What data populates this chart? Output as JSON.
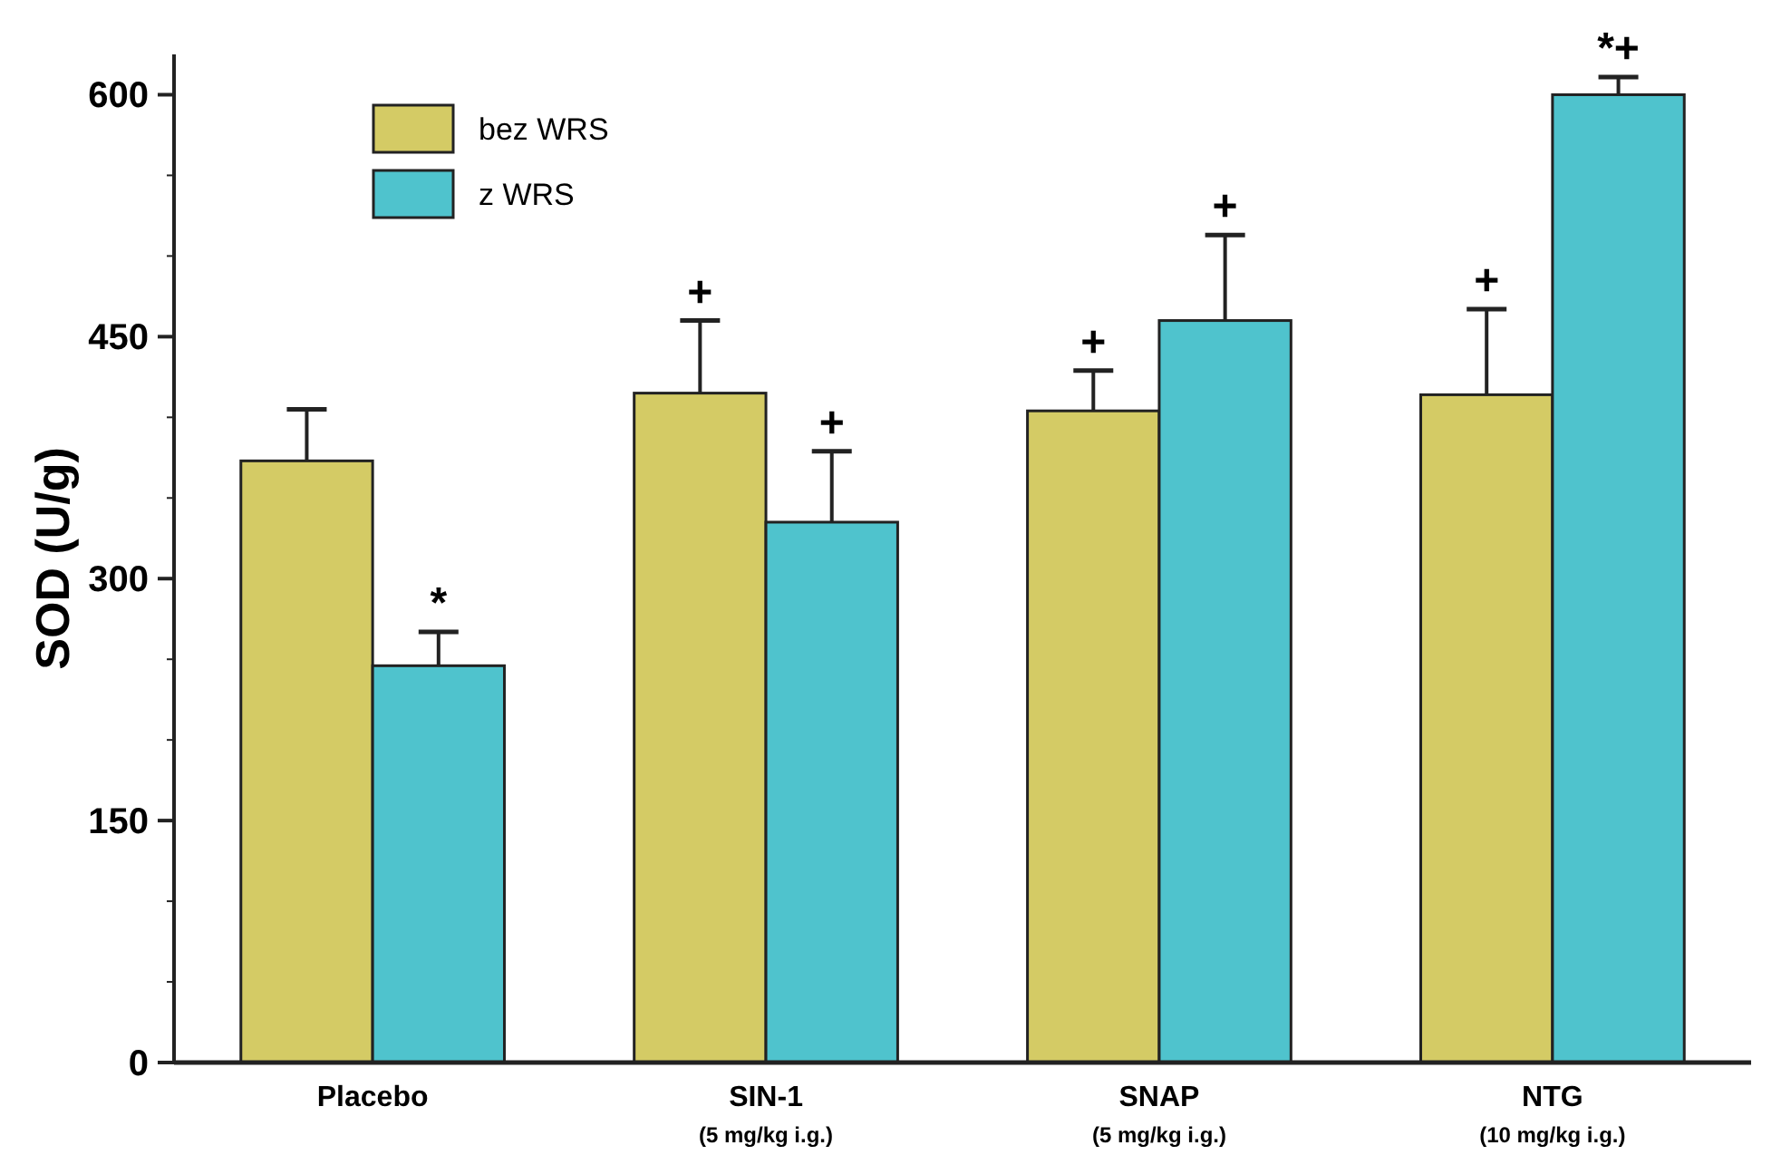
{
  "chart_data": {
    "type": "bar",
    "ylabel": "SOD (U/g)",
    "categories": [
      "Placebo",
      "SIN-1\n(5 mg/kg i.g.)",
      "SNAP\n(5 mg/kg i.g.)",
      "NTG\n(10 mg/kg i.g.)"
    ],
    "series": [
      {
        "name": "bez WRS",
        "color": "#d4cb65",
        "values": [
          373,
          415,
          404,
          414
        ],
        "errors": [
          32,
          45,
          25,
          53
        ],
        "value_labels": [
          null,
          "+",
          "+",
          "+"
        ]
      },
      {
        "name": "z WRS",
        "color": "#4fc3cd",
        "values": [
          246,
          335,
          460,
          600
        ],
        "errors": [
          21,
          44,
          53,
          11
        ],
        "value_labels": [
          "*",
          "+",
          "+",
          "*+"
        ]
      }
    ],
    "ylim": [
      0,
      625
    ],
    "yticks": [
      0,
      {
        "value": 50,
        "label": null
      },
      {
        "value": 100,
        "label": null
      },
      150,
      {
        "value": 200,
        "label": null
      },
      {
        "value": 250,
        "label": null
      },
      300,
      {
        "value": 350,
        "label": null
      },
      {
        "value": 400,
        "label": null
      },
      450,
      {
        "value": 500,
        "label": null
      },
      {
        "value": 550,
        "label": null
      },
      600
    ],
    "grid": false,
    "legend": "top left"
  }
}
